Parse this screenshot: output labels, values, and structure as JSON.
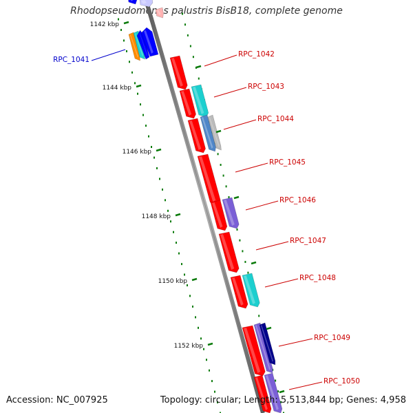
{
  "title": "Rhodopseudomonas palustris BisB18, complete genome",
  "footer": {
    "accession": "Accession: NC_007925",
    "summary": "Topology: circular; Length: 5,513,844 bp; Genes: 4,958"
  },
  "colors": {
    "red": "#ff0000",
    "cyan": "#1ccfcf",
    "blue": "#0000ff",
    "orange": "#ff8c00",
    "purple": "#7a5fd6",
    "navy": "#00008b",
    "steel": "#4f86c8",
    "gray": "#bbbbbb",
    "tick": "#0a7a0a",
    "label_red": "#cc0000",
    "label_blue": "#0000cc"
  },
  "kbp_ticks": [
    {
      "label": "1142 kbp"
    },
    {
      "label": "1144 kbp"
    },
    {
      "label": "1146 kbp"
    },
    {
      "label": "1148 kbp"
    },
    {
      "label": "1150 kbp"
    },
    {
      "label": "1152 kbp"
    }
  ],
  "gene_labels": [
    {
      "text": "RPC_1041",
      "color": "blue"
    },
    {
      "text": "RPC_1042",
      "color": "red"
    },
    {
      "text": "RPC_1043",
      "color": "red"
    },
    {
      "text": "RPC_1044",
      "color": "red"
    },
    {
      "text": "RPC_1045",
      "color": "red"
    },
    {
      "text": "RPC_1046",
      "color": "red"
    },
    {
      "text": "RPC_1047",
      "color": "red"
    },
    {
      "text": "RPC_1048",
      "color": "red"
    },
    {
      "text": "RPC_1049",
      "color": "red"
    },
    {
      "text": "RPC_1050",
      "color": "red"
    }
  ]
}
